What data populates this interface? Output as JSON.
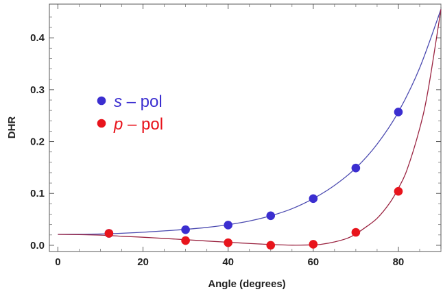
{
  "chart_data": {
    "type": "scatter",
    "xlabel": "Angle (degrees)",
    "ylabel": "DHR",
    "xlim": [
      -2,
      90
    ],
    "ylim": [
      -0.012,
      0.465
    ],
    "xticks": [
      0,
      20,
      40,
      60,
      80
    ],
    "yticks": [
      0.0,
      0.1,
      0.2,
      0.3,
      0.4
    ],
    "ytick_labels": [
      "0.0",
      "0.1",
      "0.2",
      "0.3",
      "0.4"
    ],
    "grid": false,
    "legend_position": "upper-left",
    "series": [
      {
        "name": "s – pol",
        "legend_italic": "s",
        "legend_rest": " – pol",
        "color": "#3b2ed0",
        "line_color": "#4b4ab0",
        "points": {
          "x": [
            12,
            30,
            40,
            50,
            60,
            70,
            80
          ],
          "y": [
            0.023,
            0.03,
            0.039,
            0.057,
            0.09,
            0.149,
            0.257
          ]
        },
        "curve": {
          "x": [
            0,
            5,
            10,
            15,
            20,
            25,
            30,
            35,
            40,
            45,
            50,
            55,
            60,
            65,
            70,
            75,
            80,
            85,
            90
          ],
          "y": [
            0.021,
            0.0212,
            0.0218,
            0.0232,
            0.0252,
            0.0278,
            0.0307,
            0.0345,
            0.0397,
            0.0468,
            0.0568,
            0.0705,
            0.09,
            0.1155,
            0.149,
            0.195,
            0.257,
            0.342,
            0.455
          ]
        }
      },
      {
        "name": "p – pol",
        "legend_italic": "p",
        "legend_rest": " – pol",
        "color": "#e8141c",
        "line_color": "#9a2340",
        "points": {
          "x": [
            12,
            30,
            40,
            50,
            60,
            70,
            80
          ],
          "y": [
            0.023,
            0.009,
            0.005,
            0.0,
            0.002,
            0.025,
            0.104
          ]
        },
        "curve": {
          "x": [
            0,
            5,
            10,
            15,
            20,
            25,
            30,
            35,
            40,
            45,
            50,
            55,
            60,
            62,
            65,
            68,
            70,
            72,
            75,
            78,
            80,
            82,
            85,
            87,
            90
          ],
          "y": [
            0.021,
            0.0205,
            0.0195,
            0.0175,
            0.0155,
            0.0132,
            0.0108,
            0.0082,
            0.0058,
            0.0035,
            0.0015,
            0.0003,
            0.0008,
            0.002,
            0.0065,
            0.0135,
            0.022,
            0.033,
            0.052,
            0.082,
            0.11,
            0.145,
            0.225,
            0.3,
            0.455
          ]
        }
      }
    ]
  }
}
